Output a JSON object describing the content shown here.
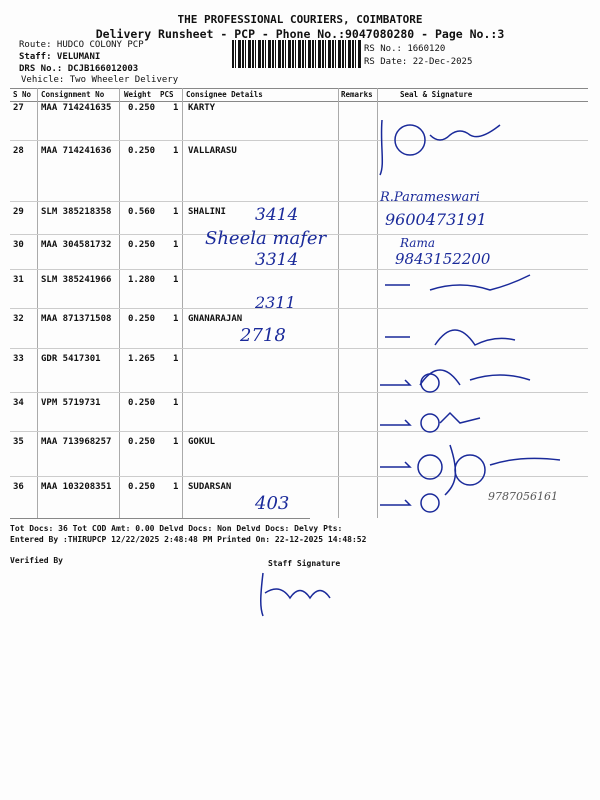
{
  "header": {
    "company": "THE PROFESSIONAL COURIERS, COIMBATORE",
    "subtitle": "Delivery Runsheet - PCP - Phone No.:9047080280 - Page No.:3",
    "route": "Route: HUDCO COLONY PCP",
    "staff": "Staff: VELUMANI",
    "drs": "DRS No.: DCJB166012003",
    "vehicle": "Vehicle: Two Wheeler Delivery",
    "rs_no": "RS No.: 1660120",
    "rs_date": "RS Date: 22-Dec-2025"
  },
  "table": {
    "columns": [
      "S No",
      "Consignment No",
      "Weight",
      "PCS",
      "Consignee Details",
      "Remarks",
      "Seal & Signature"
    ],
    "rows": [
      {
        "sno": "27",
        "cn": "MAA 714241635",
        "weight": "0.250",
        "pcs": "1",
        "consignee": "KARTY"
      },
      {
        "sno": "28",
        "cn": "MAA 714241636",
        "weight": "0.250",
        "pcs": "1",
        "consignee": "VALLARASU"
      },
      {
        "sno": "29",
        "cn": "SLM 385218358",
        "weight": "0.560",
        "pcs": "1",
        "consignee": "SHALINI"
      },
      {
        "sno": "30",
        "cn": "MAA 304581732",
        "weight": "0.250",
        "pcs": "1",
        "consignee": ""
      },
      {
        "sno": "31",
        "cn": "SLM 385241966",
        "weight": "1.280",
        "pcs": "1",
        "consignee": ""
      },
      {
        "sno": "32",
        "cn": "MAA 871371508",
        "weight": "0.250",
        "pcs": "1",
        "consignee": "GNANARAJAN"
      },
      {
        "sno": "33",
        "cn": "GDR 5417301",
        "weight": "1.265",
        "pcs": "1",
        "consignee": ""
      },
      {
        "sno": "34",
        "cn": "VPM 5719731",
        "weight": "0.250",
        "pcs": "1",
        "consignee": ""
      },
      {
        "sno": "35",
        "cn": "MAA 713968257",
        "weight": "0.250",
        "pcs": "1",
        "consignee": "GOKUL"
      },
      {
        "sno": "36",
        "cn": "MAA 103208351",
        "weight": "0.250",
        "pcs": "1",
        "consignee": "SUDARSAN"
      }
    ]
  },
  "handwriting": {
    "n1": "3414",
    "n2": "Sheela mafer",
    "n3": "3314",
    "n4": "2311",
    "n5": "2718",
    "n6": "403",
    "p1": "R.Parameswari",
    "p2": "9600473191",
    "p3": "Rama",
    "p4": "9843152200",
    "p5": "9787056161"
  },
  "footer": {
    "line1": "Tot Docs:  36    Tot COD Amt:    0.00    Delvd Docs:     Non Delvd Docs:     Delvy Pts:",
    "line2": "Entered By :THIRUPCP 12/22/2025 2:48:48 PM    Printed On: 22-12-2025 14:48:52",
    "verified": "Verified By",
    "staff_sig": "Staff Signature"
  }
}
